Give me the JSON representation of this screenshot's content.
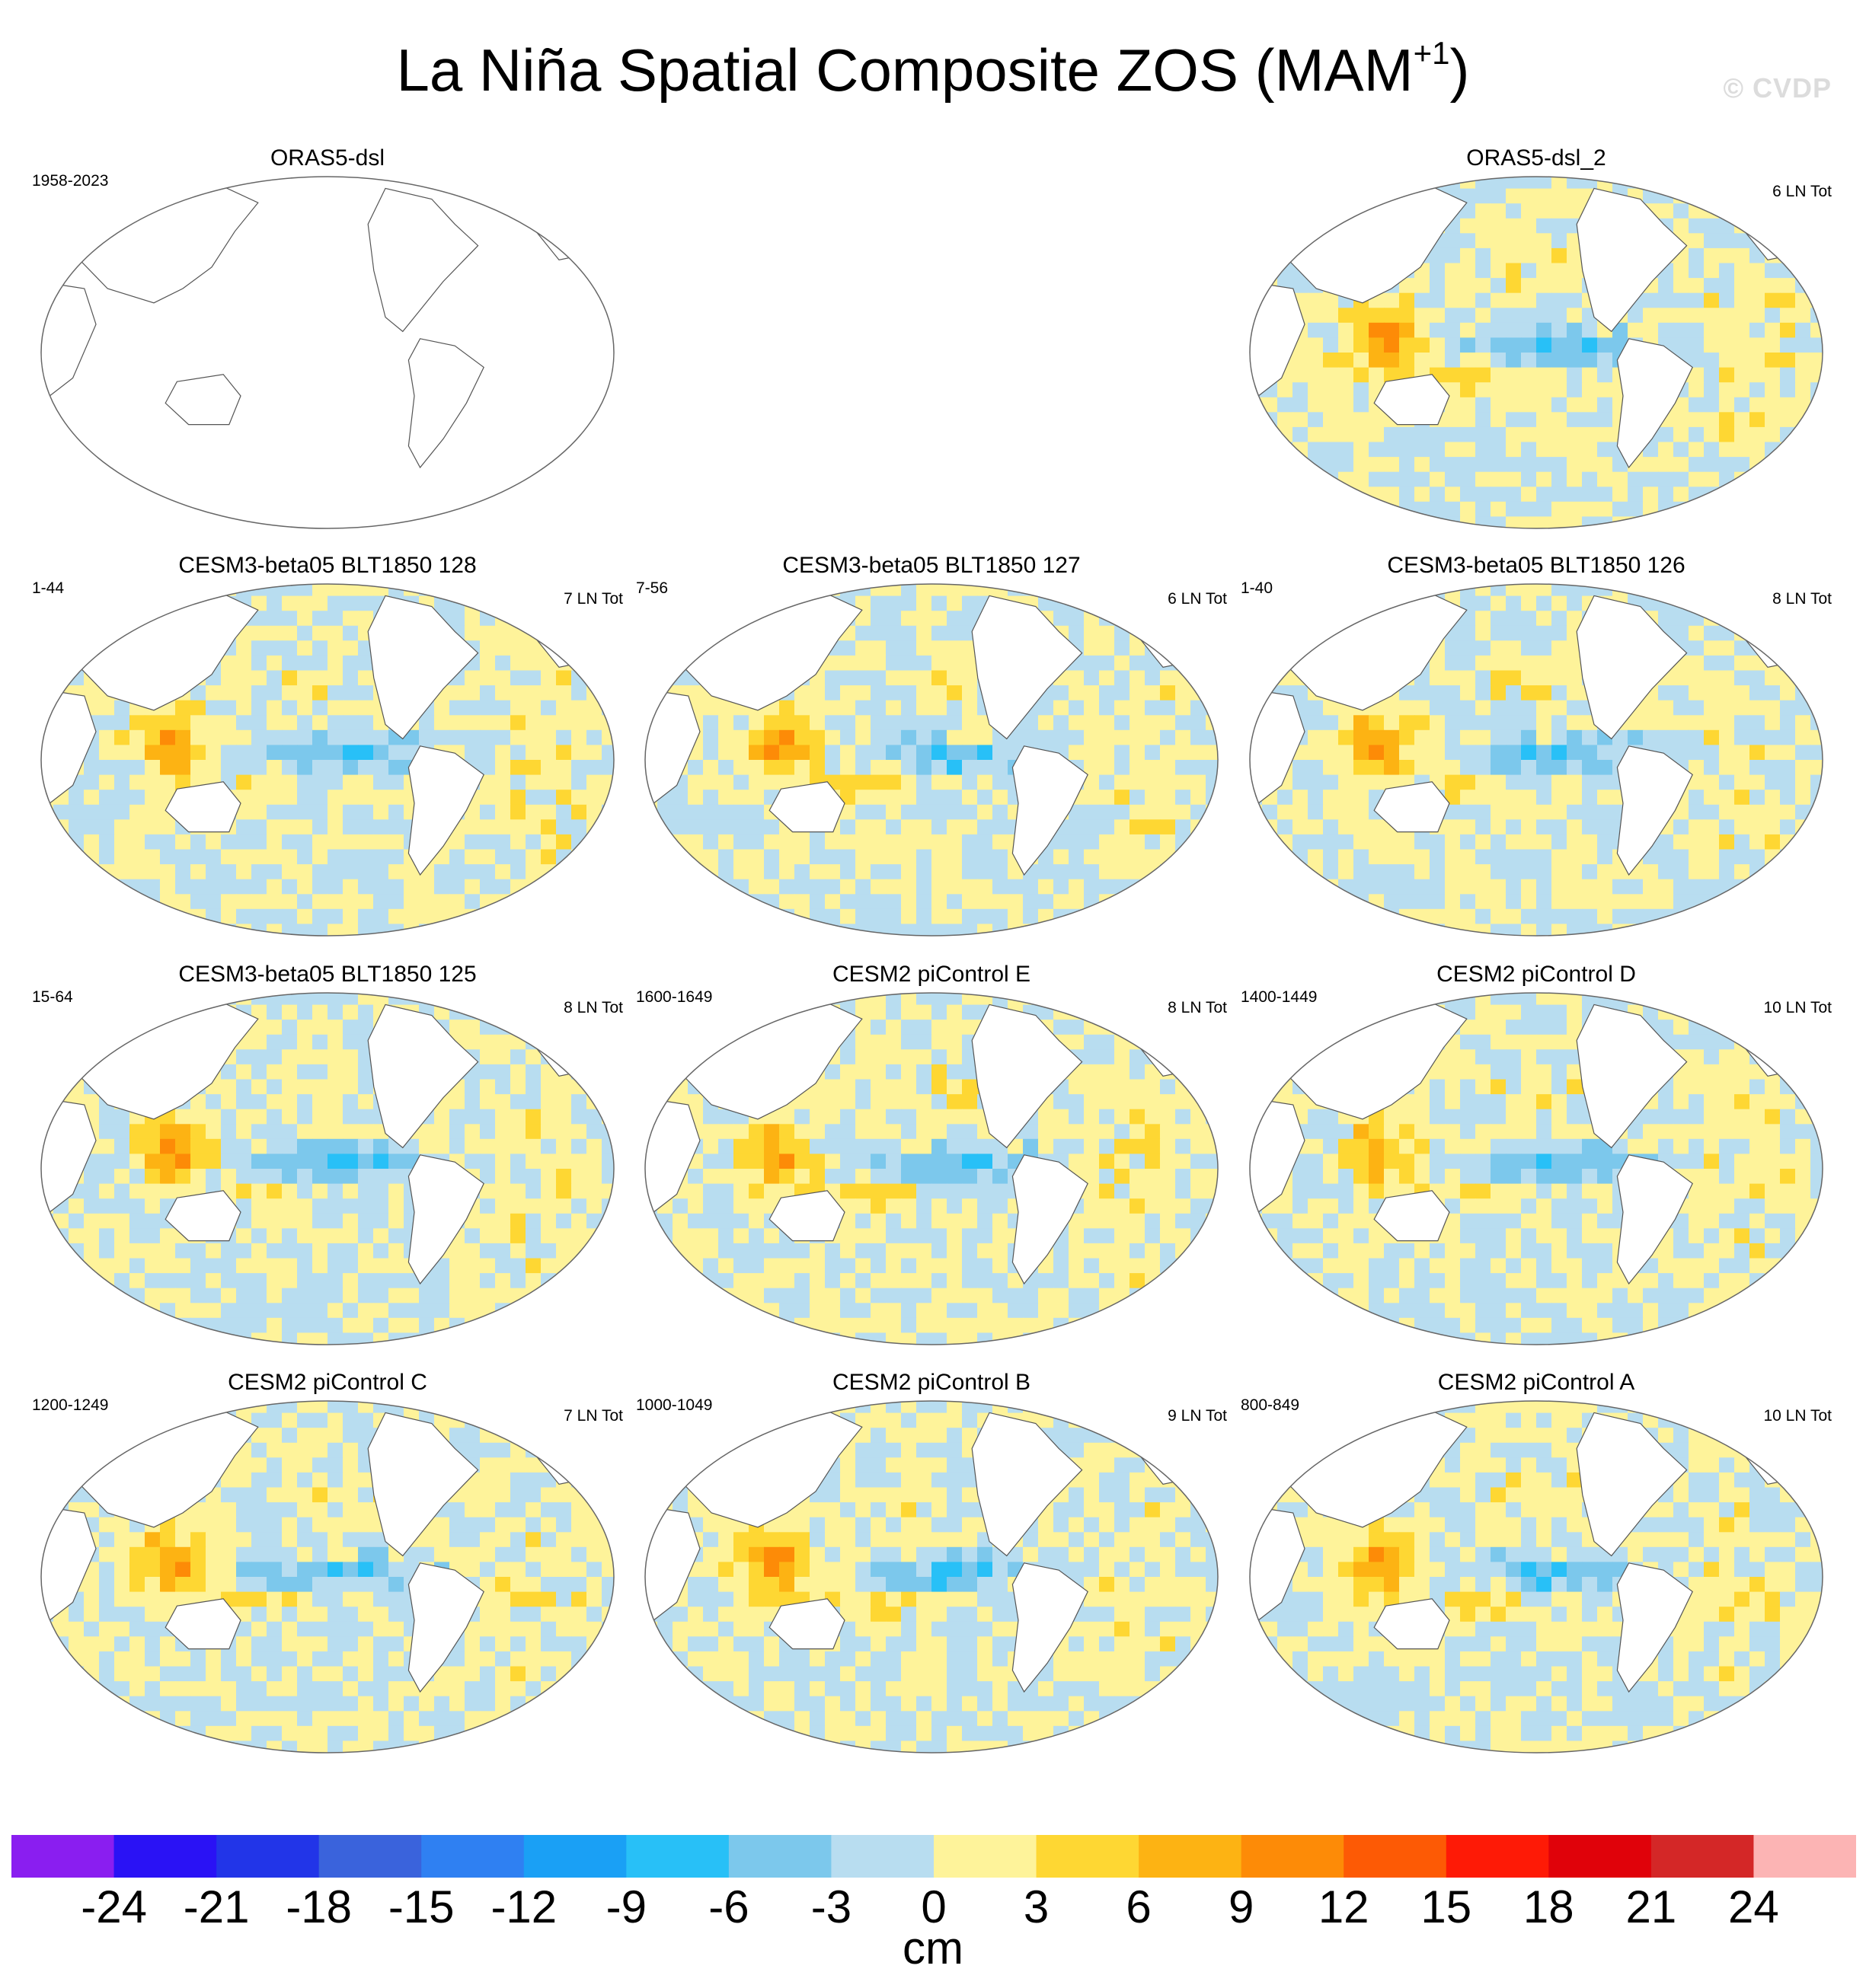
{
  "figure": {
    "title": "La Niña Spatial Composite ZOS (MAM",
    "title_sup": "+1",
    "title_close": ")",
    "watermark": "© CVDP"
  },
  "panels": [
    {
      "title": "ORAS5-dsl",
      "left": "1958-2023",
      "right": "",
      "filled": false
    },
    {
      "title": "ORAS5-dsl_2",
      "left": "",
      "right": "6 LN Tot",
      "filled": true,
      "pattern": 0
    },
    {
      "title": "CESM3-beta05 BLT1850 128",
      "left": "1-44",
      "right": "7 LN Tot",
      "filled": true,
      "pattern": 1
    },
    {
      "title": "CESM3-beta05 BLT1850 127",
      "left": "7-56",
      "right": "6 LN Tot",
      "filled": true,
      "pattern": 2
    },
    {
      "title": "CESM3-beta05 BLT1850 126",
      "left": "1-40",
      "right": "8 LN Tot",
      "filled": true,
      "pattern": 3
    },
    {
      "title": "CESM3-beta05 BLT1850 125",
      "left": "15-64",
      "right": "8 LN Tot",
      "filled": true,
      "pattern": 4
    },
    {
      "title": "CESM2 piControl E",
      "left": "1600-1649",
      "right": "8 LN Tot",
      "filled": true,
      "pattern": 5
    },
    {
      "title": "CESM2 piControl D",
      "left": "1400-1449",
      "right": "10 LN Tot",
      "filled": true,
      "pattern": 6
    },
    {
      "title": "CESM2 piControl C",
      "left": "1200-1249",
      "right": "7 LN Tot",
      "filled": true,
      "pattern": 7
    },
    {
      "title": "CESM2 piControl B",
      "left": "1000-1049",
      "right": "9 LN Tot",
      "filled": true,
      "pattern": 8
    },
    {
      "title": "CESM2 piControl A",
      "left": "800-849",
      "right": "10 LN Tot",
      "filled": true,
      "pattern": 9
    }
  ],
  "colorbar": {
    "colors": [
      "#8a1ef0",
      "#2a12f5",
      "#2235e8",
      "#3a63dc",
      "#2f80f2",
      "#1aa0f5",
      "#28c0f7",
      "#7cc8ec",
      "#b8ddf0",
      "#fef39a",
      "#fed733",
      "#fdb313",
      "#fd8b07",
      "#fd5a05",
      "#fe1a06",
      "#e0020a",
      "#d42727",
      "#fcb4b4"
    ],
    "ticks": [
      "-24",
      "-21",
      "-18",
      "-15",
      "-12",
      "-9",
      "-6",
      "-3",
      "0",
      "3",
      "6",
      "9",
      "12",
      "15",
      "18",
      "21",
      "24"
    ],
    "unit": "cm"
  },
  "chart_data": {
    "type": "heatmap",
    "title": "La Niña Spatial Composite ZOS (MAM+1)",
    "units": "cm",
    "levels": [
      -24,
      -21,
      -18,
      -15,
      -12,
      -9,
      -6,
      -3,
      0,
      3,
      6,
      9,
      12,
      15,
      18,
      21,
      24
    ],
    "panels": [
      {
        "title": "ORAS5-dsl",
        "period": "1958-2023",
        "count": "",
        "data": "no data (blank map)"
      },
      {
        "title": "ORAS5-dsl_2",
        "period": "",
        "count": "6 LN Tot",
        "western_pacific_max": 12,
        "equatorial_pacific_min": -6
      },
      {
        "title": "CESM3-beta05 BLT1850 128",
        "period": "1-44",
        "count": "7 LN Tot",
        "western_pacific_max": 9,
        "equatorial_pacific_min": -6
      },
      {
        "title": "CESM3-beta05 BLT1850 127",
        "period": "7-56",
        "count": "6 LN Tot",
        "western_pacific_max": 9,
        "equatorial_pacific_min": -6
      },
      {
        "title": "CESM3-beta05 BLT1850 126",
        "period": "1-40",
        "count": "8 LN Tot",
        "western_pacific_max": 9,
        "equatorial_pacific_min": -6
      },
      {
        "title": "CESM3-beta05 BLT1850 125",
        "period": "15-64",
        "count": "8 LN Tot",
        "western_pacific_max": 9,
        "equatorial_pacific_min": -6
      },
      {
        "title": "CESM2 piControl E",
        "period": "1600-1649",
        "count": "8 LN Tot",
        "western_pacific_max": 9,
        "equatorial_pacific_min": -9
      },
      {
        "title": "CESM2 piControl D",
        "period": "1400-1449",
        "count": "10 LN Tot",
        "western_pacific_max": 9,
        "equatorial_pacific_min": -9
      },
      {
        "title": "CESM2 piControl C",
        "period": "1200-1249",
        "count": "7 LN Tot",
        "western_pacific_max": 9,
        "equatorial_pacific_min": -12
      },
      {
        "title": "CESM2 piControl B",
        "period": "1000-1049",
        "count": "9 LN Tot",
        "western_pacific_max": 12,
        "equatorial_pacific_min": -9
      },
      {
        "title": "CESM2 piControl A",
        "period": "800-849",
        "count": "10 LN Tot",
        "western_pacific_max": 9,
        "equatorial_pacific_min": -9
      }
    ]
  }
}
